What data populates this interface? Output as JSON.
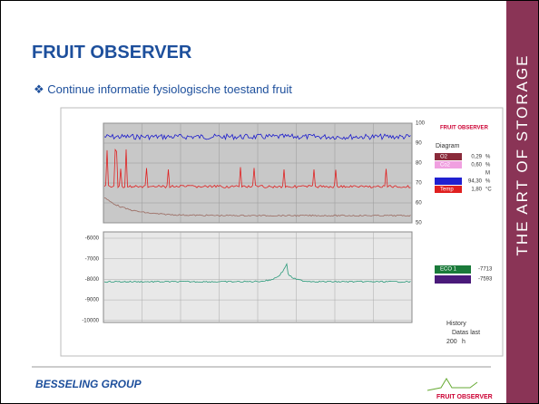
{
  "slide": {
    "title": "FRUIT OBSERVER",
    "bullet": "Continue informatie fysiologische toestand fruit",
    "side_text": "THE ART OF STORAGE",
    "footer_left": "BESSELING GROUP",
    "footer_right": "FRUIT OBSERVER"
  },
  "screenshot": {
    "logo": "FRUIT OBSERVER",
    "right_ticks": [
      "100",
      "90",
      "80",
      "70",
      "60",
      "50"
    ],
    "lower_ticks": [
      "-6000",
      "-7000",
      "-8000",
      "-9000",
      "-10000"
    ],
    "legend": {
      "title": "Diagram",
      "rows": [
        {
          "name": "O2",
          "value": "0,29",
          "unit": "%"
        },
        {
          "name": "Co2",
          "value": "0,60",
          "unit": "%"
        },
        {
          "name": "",
          "value": "",
          "unit": "M"
        },
        {
          "name": "",
          "value": "94,30",
          "unit": "%"
        },
        {
          "name": "Temp",
          "value": "1,80",
          "unit": "°C"
        }
      ],
      "eco": [
        {
          "name": "ECO 1",
          "value": "-7713"
        },
        {
          "name": "",
          "value": "-7593"
        }
      ]
    },
    "history": {
      "title": "History",
      "option": "Datas last",
      "hours": "200",
      "unit": "h"
    }
  }
}
